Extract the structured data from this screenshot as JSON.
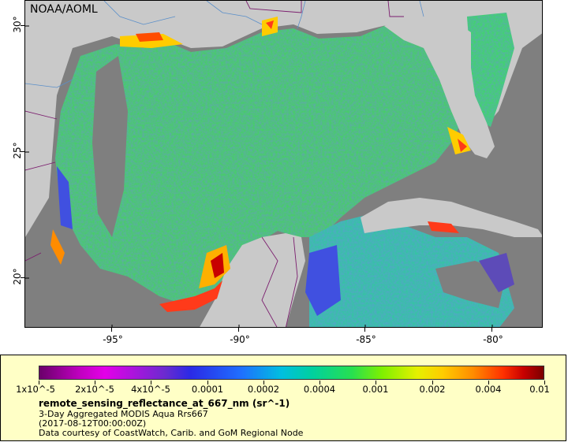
{
  "map": {
    "credit": "NOAA/AOML",
    "x_ticks": [
      "-95°",
      "-90°",
      "-85°",
      "-80°"
    ],
    "y_ticks": [
      "30°",
      "25°",
      "20°"
    ],
    "colors": {
      "land": "#c9c9c9",
      "no_data": "#7f7f7f",
      "borders": "#7b1d6e",
      "rivers": "#5a8fc9"
    }
  },
  "legend": {
    "colorbar_labels": [
      "1x10^-5",
      "2x10^-5",
      "4x10^-5",
      "0.0001",
      "0.0002",
      "0.0004",
      "0.001",
      "0.002",
      "0.004",
      "0.01"
    ],
    "variable": "remote_sensing_reflectance_at_667_nm (sr^-1)",
    "product": "3-Day Aggregated MODIS Aqua Rrs667",
    "time": "(2017-08-12T00:00:00Z)",
    "source": "Data courtesy of CoastWatch, Carib. and GoM Regional Node",
    "background": "#ffffc6"
  }
}
